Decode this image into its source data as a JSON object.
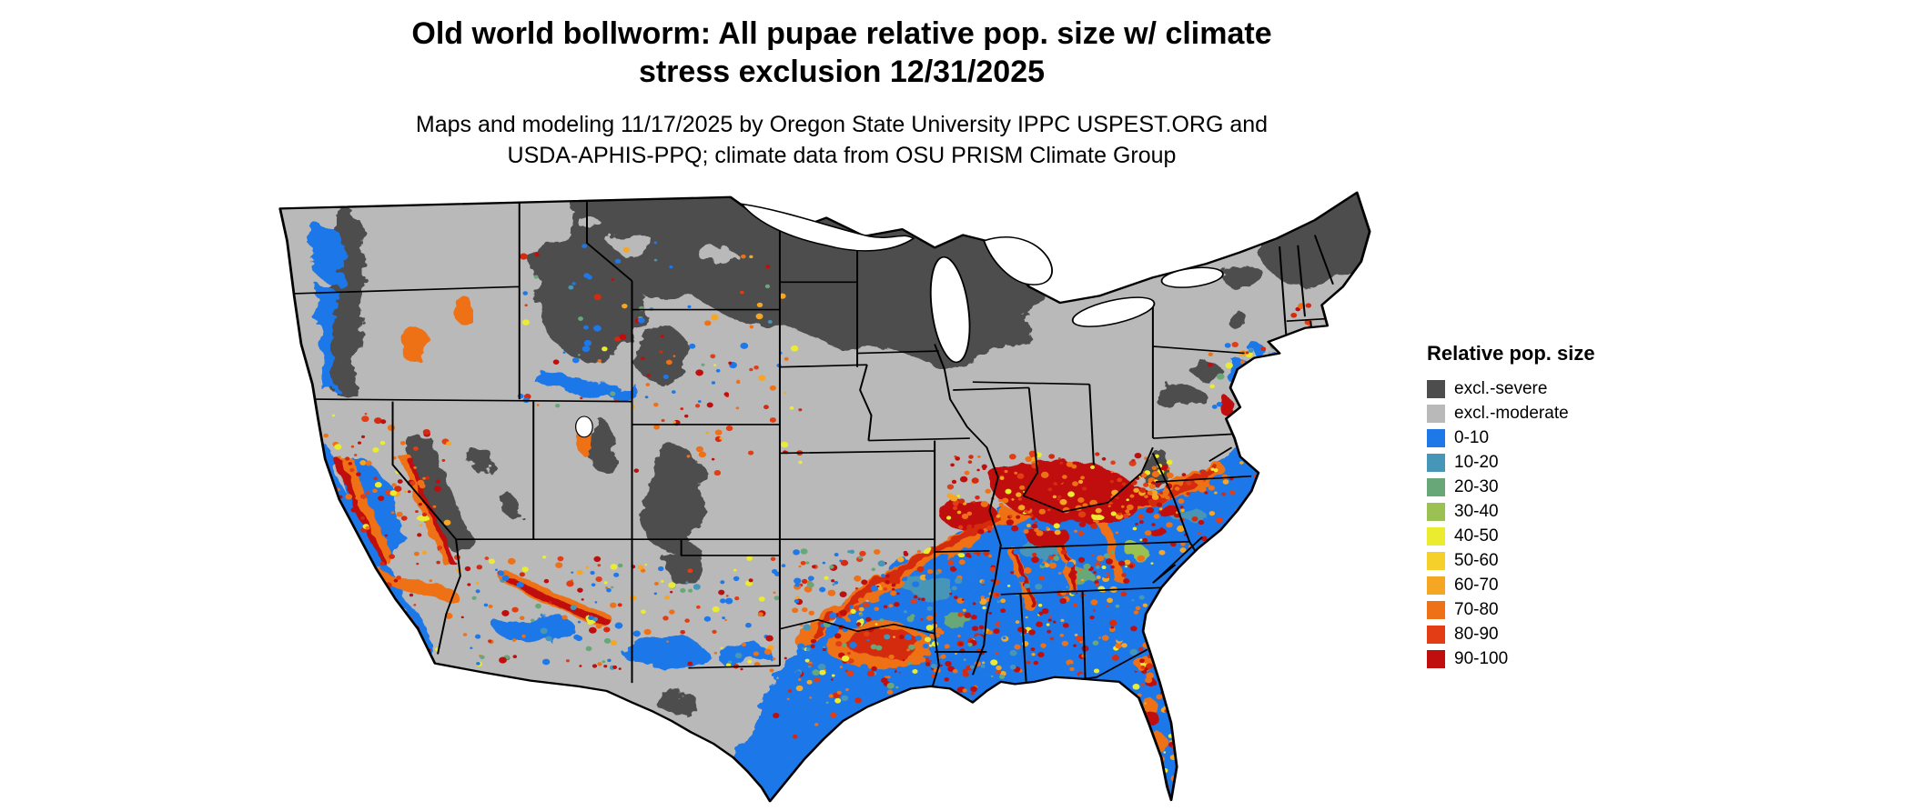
{
  "title": {
    "line1": "Old world bollworm: All pupae relative pop. size w/ climate",
    "line2": "stress exclusion 12/31/2025"
  },
  "subtitle": {
    "line1": "Maps and modeling 11/17/2025 by Oregon State University IPPC USPEST.ORG and",
    "line2": "USDA-APHIS-PPQ; climate data from OSU PRISM Climate Group"
  },
  "legend": {
    "title": "Relative pop. size",
    "items": [
      {
        "label": "excl.-severe",
        "color": "#4d4d4d"
      },
      {
        "label": "excl.-moderate",
        "color": "#b9b9b9"
      },
      {
        "label": "0-10",
        "color": "#1e78e8"
      },
      {
        "label": "10-20",
        "color": "#4696b8"
      },
      {
        "label": "20-30",
        "color": "#68a878"
      },
      {
        "label": "30-40",
        "color": "#9cc153"
      },
      {
        "label": "40-50",
        "color": "#ebeb30"
      },
      {
        "label": "50-60",
        "color": "#f5d02a"
      },
      {
        "label": "60-70",
        "color": "#f5a623"
      },
      {
        "label": "70-80",
        "color": "#ee7118"
      },
      {
        "label": "80-90",
        "color": "#e23d14"
      },
      {
        "label": "90-100",
        "color": "#c00d0d"
      }
    ]
  },
  "map": {
    "land_color": "#b9b9b9",
    "severe_color": "#4d4d4d",
    "water_color": "#ffffff",
    "border_color": "#000000",
    "low_pop_color": "#1e78e8"
  }
}
